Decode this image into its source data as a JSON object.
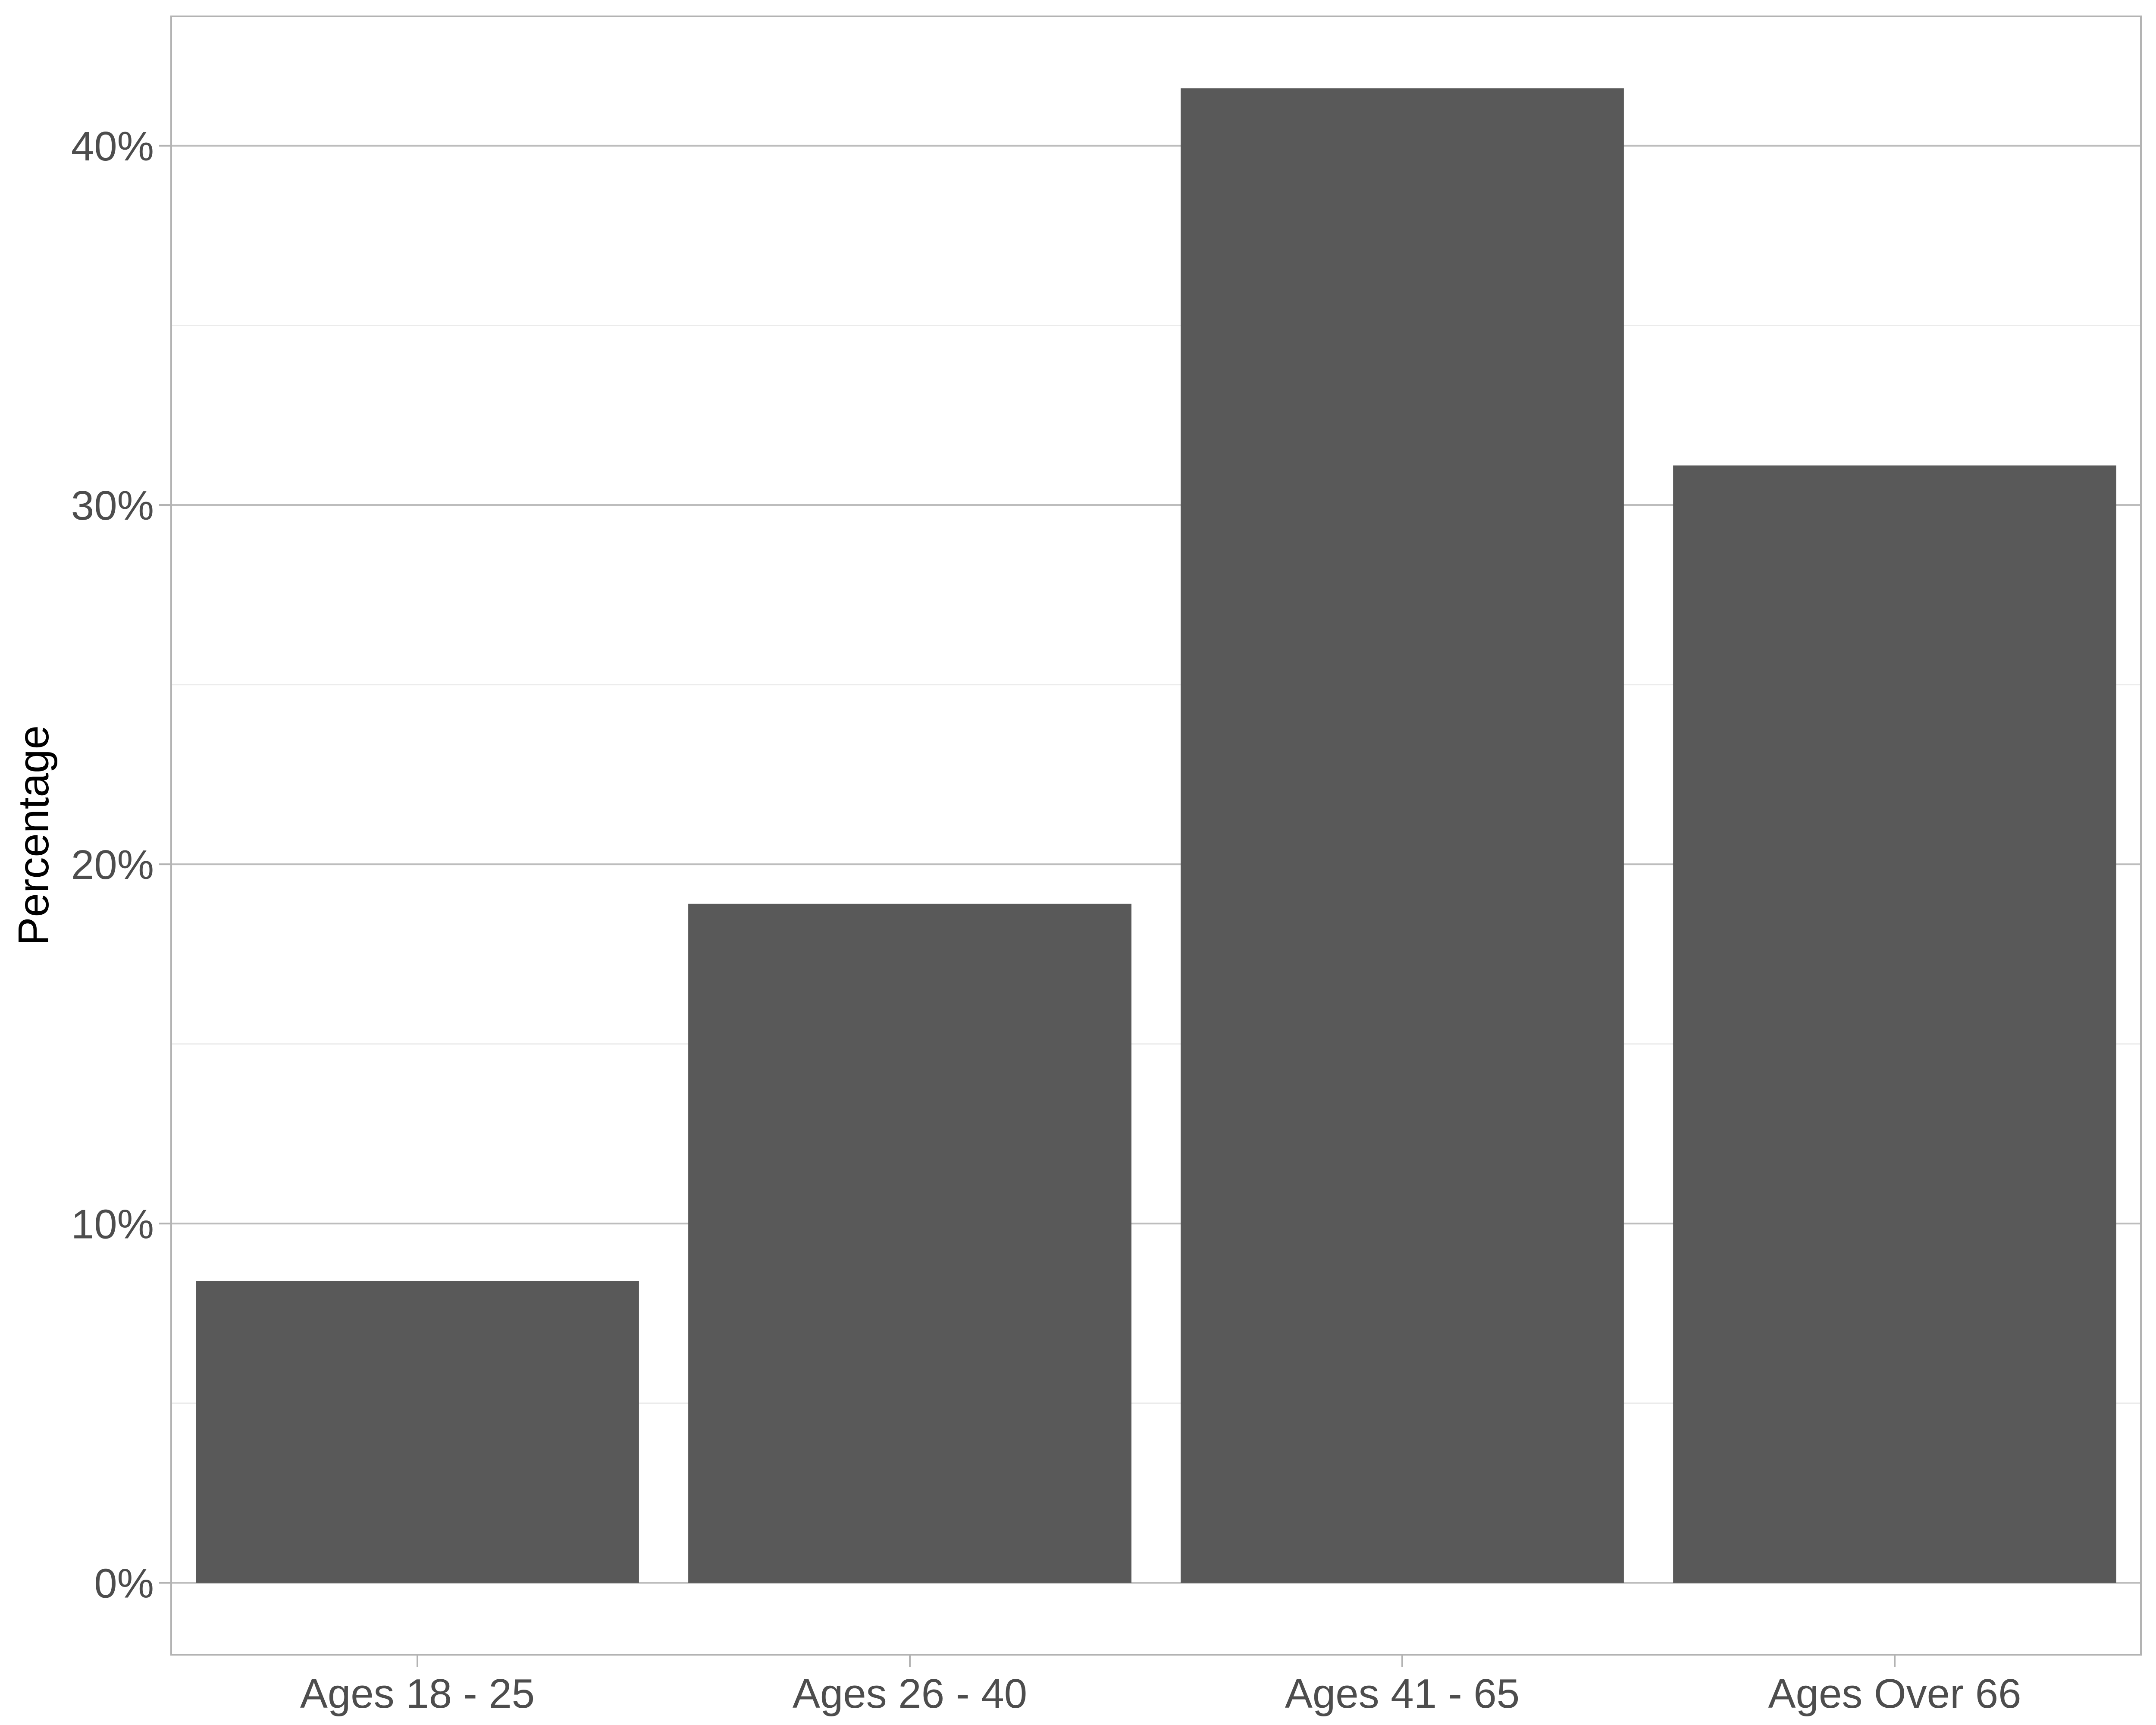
{
  "chart_data": {
    "type": "bar",
    "categories": [
      "Ages 18 - 25",
      "Ages 26 - 40",
      "Ages 41 - 65",
      "Ages Over 66"
    ],
    "values": [
      8.4,
      18.9,
      41.6,
      31.1
    ],
    "title": "",
    "xlabel": "",
    "ylabel": "Percentage",
    "ylim": [
      -2,
      43.6
    ],
    "yticks": [
      0,
      10,
      20,
      30,
      40
    ],
    "ytick_labels": [
      "0%",
      "10%",
      "20%",
      "30%",
      "40%"
    ],
    "grid": true,
    "legend": "none",
    "colors": {
      "bar": "#595959",
      "major_grid": "#bdbdbd",
      "minor_grid": "#ebebeb",
      "panel_border": "#b3b3b3",
      "tick_text": "#4d4d4d",
      "axis_title": "#000000"
    }
  }
}
